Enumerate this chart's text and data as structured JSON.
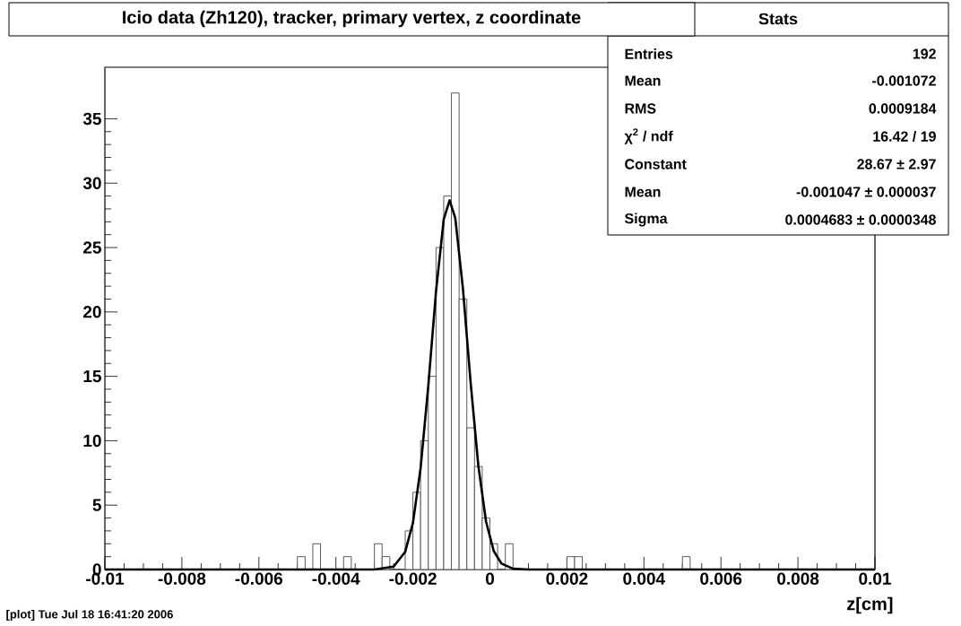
{
  "chart_data": {
    "type": "histogram",
    "title": "Icio data (Zh120), tracker, primary vertex, z coordinate",
    "xlabel": "z[cm]",
    "bins": [
      -0.01,
      -0.0098,
      -0.0096,
      -0.0094,
      -0.0092,
      -0.009,
      -0.0088,
      -0.0086,
      -0.0084,
      -0.0082,
      -0.008,
      -0.0078,
      -0.0076,
      -0.0074,
      -0.0072,
      -0.007,
      -0.0068,
      -0.0066,
      -0.0064,
      -0.0062,
      -0.006,
      -0.0058,
      -0.0056,
      -0.0054,
      -0.0052,
      -0.005,
      -0.0048,
      -0.0046,
      -0.0044,
      -0.0042,
      -0.004,
      -0.0038,
      -0.0036,
      -0.0034,
      -0.0032,
      -0.003,
      -0.0028,
      -0.0026,
      -0.0024,
      -0.0022,
      -0.002,
      -0.0018,
      -0.0016,
      -0.0014,
      -0.0012,
      -0.001,
      -0.0008,
      -0.0006,
      -0.0004,
      -0.0002,
      0,
      0.0002,
      0.0004,
      0.0006,
      0.0008,
      0.001,
      0.0012,
      0.0014,
      0.0016,
      0.0018,
      0.002,
      0.0022,
      0.0024,
      0.0026,
      0.0028,
      0.003,
      0.0032,
      0.0034,
      0.0036,
      0.0038,
      0.004,
      0.0042,
      0.0044,
      0.0046,
      0.0048,
      0.005,
      0.0052,
      0.0054,
      0.0056,
      0.0058,
      0.006,
      0.0062,
      0.0064,
      0.0066,
      0.0068,
      0.007,
      0.0072,
      0.0074,
      0.0076,
      0.0078,
      0.008,
      0.0082,
      0.0084,
      0.0086,
      0.0088,
      0.009,
      0.0092,
      0.0094,
      0.0096,
      0.0098,
      0.01
    ],
    "values": [
      0,
      0,
      0,
      0,
      0,
      0,
      0,
      0,
      0,
      0,
      0,
      0,
      0,
      0,
      0,
      0,
      0,
      0,
      0,
      0,
      0,
      0,
      0,
      0,
      0,
      1,
      0,
      2,
      0,
      0,
      0,
      1,
      0,
      0,
      0,
      2,
      1,
      0,
      0,
      3,
      6,
      10,
      15,
      25,
      29,
      37,
      21,
      11,
      8,
      4,
      2,
      0,
      2,
      0,
      0,
      0,
      0,
      0,
      0,
      0,
      1,
      1,
      0,
      0,
      0,
      0,
      0,
      0,
      0,
      0,
      0,
      0,
      0,
      0,
      0,
      1,
      0,
      0,
      0,
      0,
      0,
      0,
      0,
      0,
      0,
      0,
      0,
      0,
      0,
      0,
      0,
      0,
      0,
      0,
      0,
      0,
      0,
      0,
      0,
      0
    ],
    "color": "#5a5a5a",
    "series": [
      {
        "type": "line",
        "color": "#000000",
        "x": [
          -0.01,
          -0.003,
          -0.0025,
          -0.0022,
          -0.002,
          -0.0018,
          -0.0016,
          -0.0014,
          -0.0012,
          -0.001047,
          -0.0009,
          -0.0007,
          -0.0005,
          -0.0003,
          -0.0001,
          0.0001,
          0.0003,
          0.0006,
          0.001,
          0.01
        ],
        "values": [
          0,
          0,
          0.23,
          1.38,
          3.61,
          7.87,
          14.28,
          21.58,
          27.18,
          28.67,
          27.29,
          21.79,
          14.49,
          8.03,
          3.71,
          1.43,
          0.46,
          0.06,
          0,
          0
        ]
      }
    ],
    "xlim": [
      -0.01,
      0.01
    ],
    "xticks": [
      -0.01,
      -0.008,
      -0.006,
      -0.004,
      -0.002,
      0,
      0.002,
      0.004,
      0.006,
      0.008,
      0.01
    ],
    "ylim": [
      0,
      39
    ],
    "yticks": [
      0,
      5,
      10,
      15,
      20,
      25,
      30,
      35
    ],
    "grid": false,
    "annotations": [
      "Stats",
      "Entries",
      "192",
      "Mean",
      "-0.001072",
      "RMS",
      "0.0009184",
      "χ$^{2}$ / ndf",
      "16.42 / 19",
      "Constant",
      "28.67 ± 2.97",
      "Mean",
      "-0.001047 ± 0.000037",
      "Sigma",
      "0.0004683 ± 0.0000348",
      "[plot] Tue Jul 18 16:41:20 2006"
    ]
  }
}
